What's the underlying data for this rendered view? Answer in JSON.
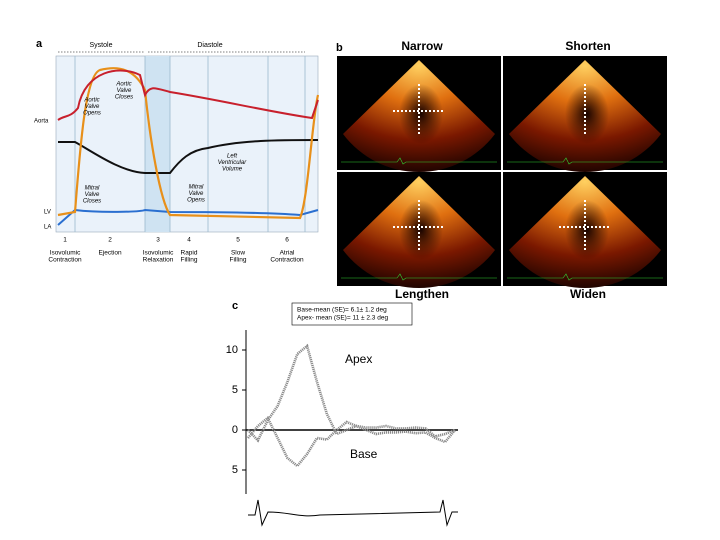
{
  "panel_a": {
    "label": "a",
    "systole": "Systole",
    "diastole": "Diastole",
    "aorta": "Aorta",
    "lv": "LV",
    "la": "LA",
    "aortic_opens": [
      "Aortic",
      "Valve",
      "Opens"
    ],
    "aortic_closes": [
      "Aortic",
      "Valve",
      "Closes"
    ],
    "mitral_closes": [
      "Mitral",
      "Valve",
      "Closes"
    ],
    "mitral_opens": [
      "Mitral",
      "Valve",
      "Opens"
    ],
    "lv_volume": [
      "Left",
      "Ventricular",
      "Volume"
    ],
    "phases": [
      {
        "number": "1",
        "name": [
          "Isovolumic",
          "Contraction"
        ]
      },
      {
        "number": "2",
        "name": [
          "Ejection"
        ]
      },
      {
        "number": "3",
        "name": [
          "Isovolumic",
          "Relaxation"
        ]
      },
      {
        "number": "4",
        "name": [
          "Rapid",
          "Filling"
        ]
      },
      {
        "number": "5",
        "name": [
          "Slow",
          "Filling"
        ]
      },
      {
        "number": "6",
        "name": [
          "Atrial",
          "Contraction"
        ]
      }
    ]
  },
  "panel_b": {
    "label": "b",
    "images": [
      "Narrow",
      "Shorten",
      "Lengthen",
      "Widen"
    ]
  },
  "chart_data": {
    "type": "line",
    "label": "c",
    "annotations": [
      "Base-mean (SE)= 6.1± 1.2 deg",
      "Apex- mean (SE)= 11 ± 2.3 deg"
    ],
    "categories": [
      null,
      null,
      null,
      null,
      null,
      null,
      null,
      null,
      null,
      null,
      null,
      null,
      null,
      null,
      null,
      null,
      null,
      null,
      null,
      null,
      null,
      null
    ],
    "series": [
      {
        "name": "Apex",
        "color": "#8a8a8a",
        "values": [
          0,
          -1.3,
          1.2,
          3,
          6,
          9.5,
          10.5,
          6,
          2,
          -0.5,
          0,
          0.5,
          0.3,
          0.3,
          0.5,
          0.2,
          0.2,
          0.3,
          0.2,
          -0.8,
          -0.5,
          0
        ]
      },
      {
        "name": "Base",
        "color": "#8a8a8a",
        "values": [
          -1,
          0.5,
          1.5,
          -1,
          -3.5,
          -4.5,
          -3,
          -1,
          -1.2,
          0,
          1,
          0.5,
          0,
          -0.5,
          -0.3,
          -0.3,
          -0.2,
          -0.4,
          -0.3,
          -1,
          -1.5,
          0
        ]
      }
    ],
    "ylim": [
      -8,
      12.5
    ],
    "yticks": [
      10,
      5,
      0,
      {
        "value": -5,
        "label": "5"
      }
    ]
  }
}
